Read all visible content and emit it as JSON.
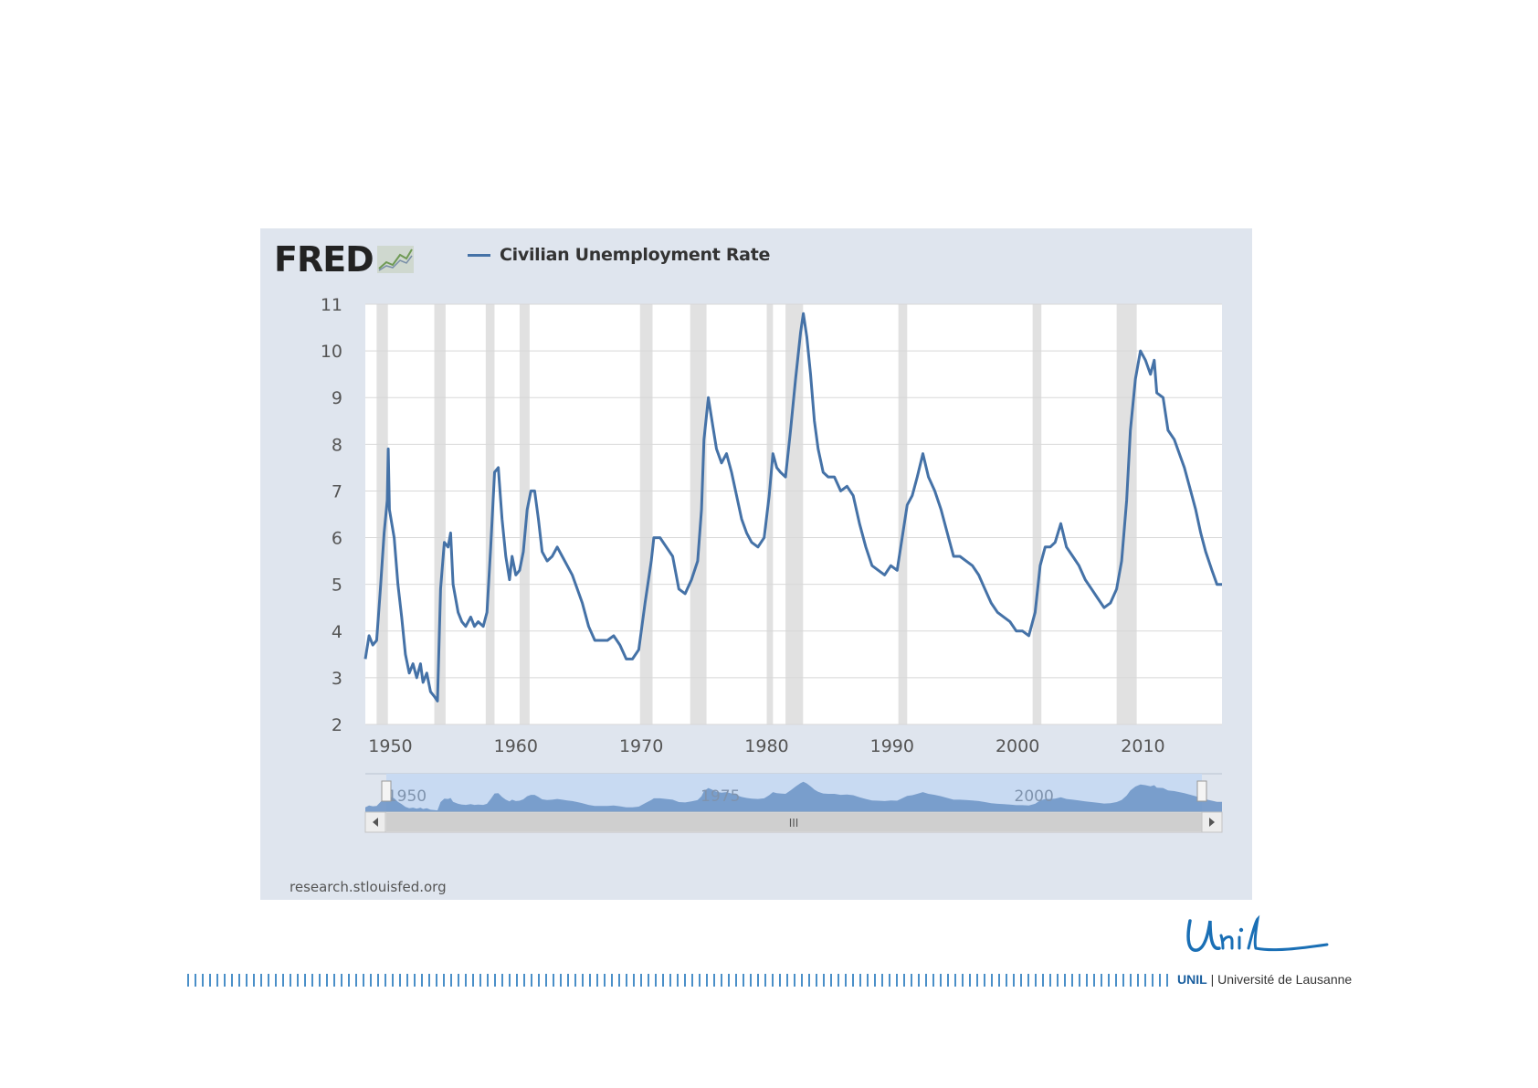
{
  "branding": {
    "fred_logo_text": "FRED",
    "fred_icon": "trend-chart-icon",
    "source": "research.stlouisfed.org",
    "unil_signature": "Unil",
    "unil_short": "UNIL",
    "unil_separator": "|",
    "unil_full": "Université de Lausanne"
  },
  "colors": {
    "series": "#4572a7",
    "recession": "#e1e1e1",
    "panel": "#dfe5ee",
    "grid": "#d8d8d8",
    "navigator_fill": "#6b93c6",
    "navigator_mask": "#c8daf2",
    "unil_blue": "#1a5f9f"
  },
  "navigator": {
    "labels": [
      "1950",
      "1975",
      "2000"
    ],
    "scroll_grip": "III"
  },
  "chart_data": {
    "type": "line",
    "title": "",
    "xlabel": "",
    "ylabel": "",
    "xlim": [
      1948,
      2016.3
    ],
    "ylim": [
      2,
      11
    ],
    "y_ticks": [
      2,
      3,
      4,
      5,
      6,
      7,
      8,
      9,
      10,
      11
    ],
    "x_ticks": [
      1950,
      1960,
      1970,
      1980,
      1990,
      2000,
      2010
    ],
    "grid": "horizontal",
    "legend": "top-left",
    "series": [
      {
        "name": "Civilian Unemployment Rate",
        "points": [
          [
            1948.0,
            3.4
          ],
          [
            1948.3,
            3.9
          ],
          [
            1948.6,
            3.7
          ],
          [
            1948.9,
            3.8
          ],
          [
            1949.2,
            4.9
          ],
          [
            1949.5,
            6.1
          ],
          [
            1949.75,
            6.8
          ],
          [
            1949.83,
            7.9
          ],
          [
            1949.92,
            6.6
          ],
          [
            1950.3,
            6.0
          ],
          [
            1950.6,
            5.0
          ],
          [
            1950.9,
            4.3
          ],
          [
            1951.2,
            3.5
          ],
          [
            1951.5,
            3.1
          ],
          [
            1951.8,
            3.3
          ],
          [
            1952.1,
            3.0
          ],
          [
            1952.4,
            3.3
          ],
          [
            1952.6,
            2.9
          ],
          [
            1952.9,
            3.1
          ],
          [
            1953.2,
            2.7
          ],
          [
            1953.5,
            2.6
          ],
          [
            1953.75,
            2.5
          ],
          [
            1954.0,
            4.9
          ],
          [
            1954.3,
            5.9
          ],
          [
            1954.6,
            5.8
          ],
          [
            1954.8,
            6.1
          ],
          [
            1955.0,
            5.0
          ],
          [
            1955.4,
            4.4
          ],
          [
            1955.7,
            4.2
          ],
          [
            1956.0,
            4.1
          ],
          [
            1956.4,
            4.3
          ],
          [
            1956.7,
            4.1
          ],
          [
            1957.0,
            4.2
          ],
          [
            1957.4,
            4.1
          ],
          [
            1957.7,
            4.4
          ],
          [
            1958.0,
            5.8
          ],
          [
            1958.3,
            7.4
          ],
          [
            1958.6,
            7.5
          ],
          [
            1958.9,
            6.4
          ],
          [
            1959.2,
            5.6
          ],
          [
            1959.5,
            5.1
          ],
          [
            1959.7,
            5.6
          ],
          [
            1960.0,
            5.2
          ],
          [
            1960.3,
            5.3
          ],
          [
            1960.6,
            5.7
          ],
          [
            1960.9,
            6.6
          ],
          [
            1961.2,
            7.0
          ],
          [
            1961.5,
            7.0
          ],
          [
            1961.8,
            6.4
          ],
          [
            1962.1,
            5.7
          ],
          [
            1962.5,
            5.5
          ],
          [
            1962.9,
            5.6
          ],
          [
            1963.3,
            5.8
          ],
          [
            1963.7,
            5.6
          ],
          [
            1964.1,
            5.4
          ],
          [
            1964.5,
            5.2
          ],
          [
            1964.9,
            4.9
          ],
          [
            1965.3,
            4.6
          ],
          [
            1965.8,
            4.1
          ],
          [
            1966.3,
            3.8
          ],
          [
            1966.8,
            3.8
          ],
          [
            1967.3,
            3.8
          ],
          [
            1967.8,
            3.9
          ],
          [
            1968.3,
            3.7
          ],
          [
            1968.8,
            3.4
          ],
          [
            1969.3,
            3.4
          ],
          [
            1969.8,
            3.6
          ],
          [
            1970.3,
            4.6
          ],
          [
            1970.8,
            5.5
          ],
          [
            1971.0,
            6.0
          ],
          [
            1971.5,
            6.0
          ],
          [
            1972.0,
            5.8
          ],
          [
            1972.5,
            5.6
          ],
          [
            1973.0,
            4.9
          ],
          [
            1973.5,
            4.8
          ],
          [
            1974.0,
            5.1
          ],
          [
            1974.5,
            5.5
          ],
          [
            1974.8,
            6.6
          ],
          [
            1975.0,
            8.1
          ],
          [
            1975.35,
            9.0
          ],
          [
            1975.7,
            8.4
          ],
          [
            1976.0,
            7.9
          ],
          [
            1976.4,
            7.6
          ],
          [
            1976.8,
            7.8
          ],
          [
            1977.2,
            7.4
          ],
          [
            1977.6,
            6.9
          ],
          [
            1978.0,
            6.4
          ],
          [
            1978.4,
            6.1
          ],
          [
            1978.8,
            5.9
          ],
          [
            1979.3,
            5.8
          ],
          [
            1979.8,
            6.0
          ],
          [
            1980.2,
            6.9
          ],
          [
            1980.5,
            7.8
          ],
          [
            1980.8,
            7.5
          ],
          [
            1981.1,
            7.4
          ],
          [
            1981.5,
            7.3
          ],
          [
            1981.9,
            8.3
          ],
          [
            1982.3,
            9.4
          ],
          [
            1982.7,
            10.4
          ],
          [
            1982.92,
            10.8
          ],
          [
            1983.2,
            10.3
          ],
          [
            1983.5,
            9.5
          ],
          [
            1983.8,
            8.5
          ],
          [
            1984.1,
            7.9
          ],
          [
            1984.5,
            7.4
          ],
          [
            1984.9,
            7.3
          ],
          [
            1985.4,
            7.3
          ],
          [
            1985.9,
            7.0
          ],
          [
            1986.4,
            7.1
          ],
          [
            1986.9,
            6.9
          ],
          [
            1987.4,
            6.3
          ],
          [
            1987.9,
            5.8
          ],
          [
            1988.4,
            5.4
          ],
          [
            1988.9,
            5.3
          ],
          [
            1989.4,
            5.2
          ],
          [
            1989.9,
            5.4
          ],
          [
            1990.4,
            5.3
          ],
          [
            1990.8,
            6.0
          ],
          [
            1991.2,
            6.7
          ],
          [
            1991.6,
            6.9
          ],
          [
            1992.0,
            7.3
          ],
          [
            1992.45,
            7.8
          ],
          [
            1992.9,
            7.3
          ],
          [
            1993.4,
            7.0
          ],
          [
            1993.9,
            6.6
          ],
          [
            1994.4,
            6.1
          ],
          [
            1994.9,
            5.6
          ],
          [
            1995.4,
            5.6
          ],
          [
            1995.9,
            5.5
          ],
          [
            1996.4,
            5.4
          ],
          [
            1996.9,
            5.2
          ],
          [
            1997.4,
            4.9
          ],
          [
            1997.9,
            4.6
          ],
          [
            1998.4,
            4.4
          ],
          [
            1998.9,
            4.3
          ],
          [
            1999.4,
            4.2
          ],
          [
            1999.9,
            4.0
          ],
          [
            2000.4,
            4.0
          ],
          [
            2000.9,
            3.9
          ],
          [
            2001.4,
            4.4
          ],
          [
            2001.8,
            5.4
          ],
          [
            2002.2,
            5.8
          ],
          [
            2002.6,
            5.8
          ],
          [
            2003.0,
            5.9
          ],
          [
            2003.45,
            6.3
          ],
          [
            2003.9,
            5.8
          ],
          [
            2004.4,
            5.6
          ],
          [
            2004.9,
            5.4
          ],
          [
            2005.4,
            5.1
          ],
          [
            2005.9,
            4.9
          ],
          [
            2006.4,
            4.7
          ],
          [
            2006.9,
            4.5
          ],
          [
            2007.4,
            4.6
          ],
          [
            2007.9,
            4.9
          ],
          [
            2008.3,
            5.5
          ],
          [
            2008.7,
            6.8
          ],
          [
            2009.0,
            8.3
          ],
          [
            2009.4,
            9.4
          ],
          [
            2009.8,
            10.0
          ],
          [
            2010.2,
            9.8
          ],
          [
            2010.6,
            9.5
          ],
          [
            2010.9,
            9.8
          ],
          [
            2011.1,
            9.1
          ],
          [
            2011.6,
            9.0
          ],
          [
            2012.0,
            8.3
          ],
          [
            2012.5,
            8.1
          ],
          [
            2012.9,
            7.8
          ],
          [
            2013.3,
            7.5
          ],
          [
            2013.8,
            7.0
          ],
          [
            2014.2,
            6.6
          ],
          [
            2014.6,
            6.1
          ],
          [
            2015.0,
            5.7
          ],
          [
            2015.5,
            5.3
          ],
          [
            2015.9,
            5.0
          ],
          [
            2016.3,
            5.0
          ]
        ]
      }
    ],
    "recessions": [
      [
        1948.9,
        1949.8
      ],
      [
        1953.5,
        1954.4
      ],
      [
        1957.6,
        1958.3
      ],
      [
        1960.3,
        1961.1
      ],
      [
        1969.9,
        1970.9
      ],
      [
        1973.9,
        1975.2
      ],
      [
        1980.0,
        1980.5
      ],
      [
        1981.5,
        1982.9
      ],
      [
        1990.5,
        1991.2
      ],
      [
        2001.2,
        2001.9
      ],
      [
        2007.9,
        2009.5
      ]
    ]
  }
}
